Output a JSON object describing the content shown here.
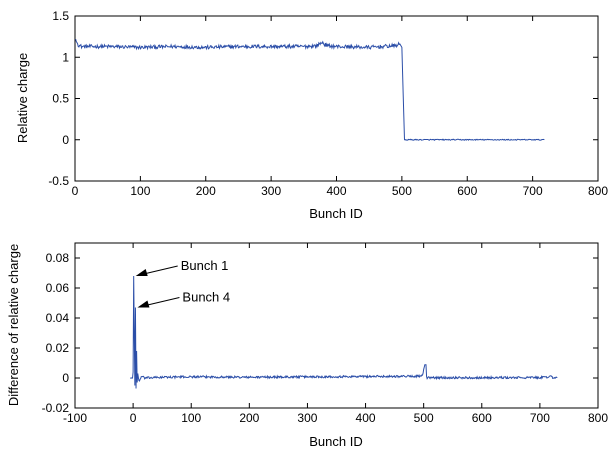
{
  "chart_data": [
    {
      "type": "line",
      "title": "",
      "xlabel": "Bunch ID",
      "ylabel": "Relative charge",
      "xlim": [
        0,
        800
      ],
      "ylim": [
        -0.5,
        1.5
      ],
      "xticks": [
        0,
        100,
        200,
        300,
        400,
        500,
        600,
        700,
        800
      ],
      "yticks": [
        -0.5,
        0,
        0.5,
        1,
        1.5
      ],
      "xtick_labels": [
        "0",
        "100",
        "200",
        "300",
        "400",
        "500",
        "600",
        "700",
        "800"
      ],
      "ytick_labels": [
        "-0.5",
        "0",
        "0.5",
        "1",
        "1.5"
      ],
      "grid": false,
      "color": "#2b4ea8",
      "series": [
        {
          "x": [
            1,
            2,
            5,
            10,
            20,
            50,
            100,
            150,
            200,
            250,
            300,
            350,
            370,
            378,
            385,
            400,
            450,
            490,
            497,
            500,
            502,
            504,
            510,
            550,
            600,
            650,
            700,
            718
          ],
          "y": [
            1.22,
            1.19,
            1.15,
            1.13,
            1.13,
            1.13,
            1.12,
            1.13,
            1.12,
            1.13,
            1.13,
            1.13,
            1.14,
            1.18,
            1.14,
            1.13,
            1.12,
            1.14,
            1.16,
            1.12,
            0.55,
            0.0,
            0.0,
            0.0,
            0.0,
            0.0,
            0.0,
            0.0
          ]
        }
      ]
    },
    {
      "type": "line",
      "title": "",
      "xlabel": "Bunch ID",
      "ylabel": "Difference of relative charge",
      "xlim": [
        -100,
        800
      ],
      "ylim": [
        -0.02,
        0.09
      ],
      "xticks": [
        -100,
        0,
        100,
        200,
        300,
        400,
        500,
        600,
        700,
        800
      ],
      "yticks": [
        -0.02,
        0,
        0.02,
        0.04,
        0.06,
        0.08
      ],
      "xtick_labels": [
        "-100",
        "0",
        "100",
        "200",
        "300",
        "400",
        "500",
        "600",
        "700",
        "800"
      ],
      "ytick_labels": [
        "-0.02",
        "0",
        "0.02",
        "0.04",
        "0.06",
        "0.08"
      ],
      "grid": false,
      "color": "#2b4ea8",
      "series": [
        {
          "x": [
            -5,
            -1,
            0,
            1,
            2,
            3,
            4,
            5,
            6,
            7,
            8,
            10,
            15,
            20,
            50,
            100,
            200,
            300,
            400,
            490,
            498,
            502,
            504,
            505,
            506,
            510,
            550,
            600,
            650,
            700,
            715,
            718,
            722,
            730
          ],
          "y": [
            0,
            0,
            0.004,
            0.068,
            0.03,
            -0.005,
            0.047,
            -0.007,
            0.018,
            -0.003,
            0.003,
            -0.002,
            0.001,
            0,
            0.0005,
            0.0008,
            0.0005,
            0.0008,
            0.001,
            0.0012,
            0.0015,
            0.0088,
            0.0088,
            0.001,
            0,
            0.0002,
            0.0002,
            0.0002,
            0.0002,
            0.0003,
            0.0005,
            0.0018,
            0.0003,
            0.0003
          ]
        }
      ],
      "annotations": [
        {
          "text": "Bunch 1",
          "x": 1,
          "y": 0.068
        },
        {
          "text": "Bunch 4",
          "x": 4,
          "y": 0.047
        }
      ]
    }
  ]
}
